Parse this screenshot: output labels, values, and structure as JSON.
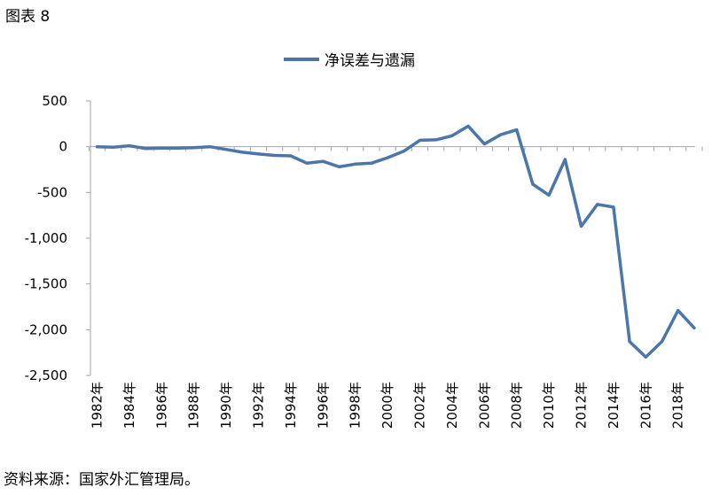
{
  "figure_label": "图表 8",
  "source_note": "资料来源：国家外汇管理局。",
  "colors": {
    "series": "#4a76aa",
    "axis": "#a6a6a6"
  },
  "chart_data": {
    "type": "line",
    "title": "",
    "xlabel": "",
    "ylabel": "",
    "legend_position": "top-center",
    "grid": false,
    "ylim": [
      -2500,
      500
    ],
    "yticks": [
      500,
      0,
      -500,
      -1000,
      -1500,
      -2000,
      -2500
    ],
    "ytick_labels": [
      "500",
      "0",
      "-500",
      "-1,000",
      "-1,500",
      "-2,000",
      "-2,500"
    ],
    "xtick_labels": [
      "1982年",
      "1984年",
      "1986年",
      "1988年",
      "1990年",
      "1992年",
      "1994年",
      "1996年",
      "1998年",
      "2000年",
      "2002年",
      "2004年",
      "2006年",
      "2008年",
      "2010年",
      "2012年",
      "2014年",
      "2016年",
      "2018年"
    ],
    "x": [
      1982,
      1983,
      1984,
      1985,
      1986,
      1987,
      1988,
      1989,
      1990,
      1991,
      1992,
      1993,
      1994,
      1995,
      1996,
      1997,
      1998,
      1999,
      2000,
      2001,
      2002,
      2003,
      2004,
      2005,
      2006,
      2007,
      2008,
      2009,
      2010,
      2011,
      2012,
      2013,
      2014,
      2015,
      2016,
      2017,
      2018,
      2019
    ],
    "series": [
      {
        "name": "净误差与遗漏",
        "values": [
          0,
          -5,
          10,
          -20,
          -15,
          -15,
          -10,
          0,
          -30,
          -60,
          -80,
          -95,
          -100,
          -180,
          -160,
          -220,
          -190,
          -180,
          -120,
          -50,
          70,
          75,
          120,
          225,
          30,
          130,
          185,
          -410,
          -530,
          -140,
          -870,
          -630,
          -660,
          -2130,
          -2300,
          -2130,
          -1790,
          -1980
        ]
      }
    ]
  }
}
